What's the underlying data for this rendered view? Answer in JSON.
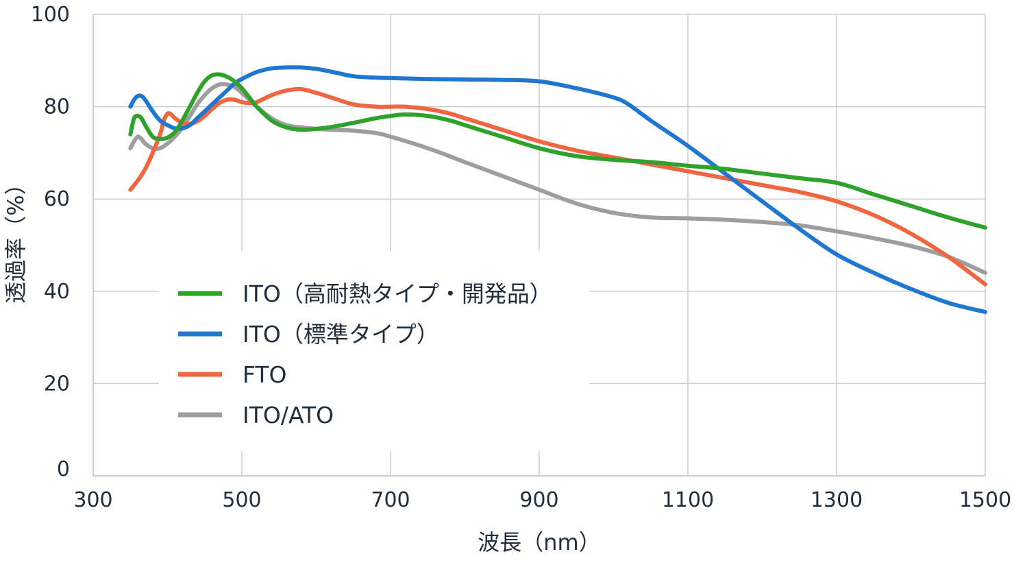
{
  "chart_data": {
    "type": "line",
    "title": "",
    "xlabel": "波長（nm）",
    "ylabel": "透過率（%）",
    "xlim": [
      300,
      1500
    ],
    "ylim": [
      0,
      100
    ],
    "x_ticks": [
      300,
      500,
      700,
      900,
      1100,
      1300,
      1500
    ],
    "y_ticks": [
      0,
      20,
      40,
      60,
      80,
      100
    ],
    "grid": true,
    "legend_position": "lower-left-inside",
    "series": [
      {
        "name": "ITO（高耐熱タイプ・開発品）",
        "color": "#2ea22a",
        "x": [
          350,
          355,
          360,
          365,
          370,
          380,
          390,
          400,
          410,
          420,
          430,
          440,
          450,
          460,
          470,
          480,
          490,
          500,
          510,
          520,
          540,
          560,
          580,
          600,
          620,
          650,
          680,
          700,
          720,
          750,
          780,
          800,
          850,
          900,
          950,
          1000,
          1050,
          1100,
          1150,
          1200,
          1250,
          1300,
          1350,
          1400,
          1450,
          1500
        ],
        "y": [
          74,
          77.5,
          78,
          77.5,
          76,
          73.5,
          73,
          73.3,
          74.5,
          77,
          80,
          83,
          85.5,
          86.8,
          87,
          86.5,
          85.5,
          84,
          82,
          80,
          77,
          75.5,
          75,
          75.2,
          75.6,
          76.5,
          77.5,
          78,
          78.3,
          78,
          77,
          76,
          73.5,
          71,
          69.3,
          68.5,
          68,
          67.2,
          66.5,
          65.5,
          64.5,
          63.5,
          61,
          58.5,
          56,
          53.8
        ]
      },
      {
        "name": "ITO（標準タイプ）",
        "color": "#1f77d0",
        "x": [
          350,
          355,
          360,
          365,
          370,
          380,
          390,
          400,
          410,
          420,
          430,
          440,
          450,
          460,
          470,
          480,
          490,
          500,
          520,
          540,
          560,
          580,
          600,
          620,
          650,
          680,
          700,
          750,
          800,
          850,
          900,
          950,
          1000,
          1020,
          1050,
          1100,
          1150,
          1200,
          1250,
          1300,
          1350,
          1400,
          1450,
          1500
        ],
        "y": [
          80,
          81.5,
          82.3,
          82.3,
          81.5,
          79,
          77,
          76,
          75.3,
          75.3,
          76,
          77.5,
          79,
          80.5,
          82,
          83.5,
          85,
          86,
          87.5,
          88.3,
          88.5,
          88.5,
          88.2,
          87.6,
          86.6,
          86.3,
          86.2,
          86,
          85.9,
          85.8,
          85.5,
          84,
          82,
          80.5,
          77,
          71.5,
          65.5,
          59.5,
          53.5,
          48,
          44,
          40.5,
          37.5,
          35.5
        ]
      },
      {
        "name": "FTO",
        "color": "#f26541",
        "x": [
          350,
          360,
          370,
          380,
          390,
          395,
          400,
          405,
          410,
          420,
          430,
          440,
          450,
          460,
          470,
          480,
          490,
          500,
          510,
          520,
          540,
          560,
          580,
          600,
          620,
          650,
          680,
          700,
          720,
          750,
          780,
          800,
          850,
          900,
          950,
          1000,
          1050,
          1100,
          1150,
          1200,
          1250,
          1300,
          1350,
          1400,
          1450,
          1500
        ],
        "y": [
          62,
          64,
          66.5,
          70,
          74,
          77,
          78.5,
          78.3,
          77.5,
          76.5,
          76.3,
          76.8,
          78,
          79.5,
          80.8,
          81.5,
          81.5,
          81,
          80.8,
          81,
          82.5,
          83.5,
          83.8,
          83,
          82,
          80.5,
          80,
          80,
          80,
          79.5,
          78.5,
          77.5,
          75,
          72.5,
          70.5,
          69,
          67.5,
          66,
          64.5,
          63,
          61.5,
          59.5,
          56.5,
          52.5,
          47.5,
          41.5
        ]
      },
      {
        "name": "ITO/ATO",
        "color": "#9e9e9e",
        "x": [
          350,
          355,
          360,
          365,
          370,
          380,
          390,
          400,
          410,
          420,
          430,
          440,
          450,
          460,
          470,
          480,
          490,
          500,
          510,
          520,
          540,
          560,
          580,
          600,
          620,
          650,
          680,
          700,
          750,
          800,
          850,
          900,
          950,
          1000,
          1050,
          1100,
          1150,
          1200,
          1250,
          1300,
          1350,
          1400,
          1450,
          1500
        ],
        "y": [
          71,
          72.5,
          73.5,
          73,
          72,
          71,
          71,
          72,
          73.5,
          75.5,
          78,
          80.5,
          82.5,
          84,
          84.8,
          84.8,
          84.3,
          83,
          81.5,
          80,
          77.5,
          76,
          75.5,
          75.2,
          75,
          74.8,
          74.3,
          73.5,
          71,
          68,
          65,
          62,
          59,
          57,
          56,
          55.8,
          55.5,
          55,
          54.3,
          53,
          51.5,
          49.8,
          47.5,
          44
        ]
      }
    ]
  }
}
